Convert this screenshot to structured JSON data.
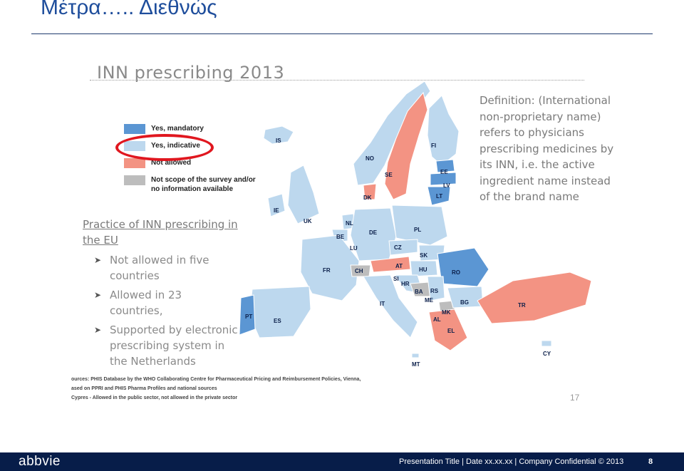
{
  "slide": {
    "title": "Μέτρα….. Διεθνώς"
  },
  "figure": {
    "title": "INN prescribing 2013",
    "legend": [
      {
        "label": "Yes, mandatory",
        "color": "#5b96d3"
      },
      {
        "label": "Yes, indicative",
        "color": "#bdd8ee"
      },
      {
        "label": "Not allowed",
        "color": "#f39383"
      },
      {
        "label": "Not scope of the survey and/or no information available",
        "color": "#bdbdbd"
      }
    ],
    "practice_heading": "Practice of INN prescribing in the EU",
    "bullets": [
      "Not allowed in five countries",
      "Allowed in 23 countries,",
      "Supported by electronic prescribing system in the Netherlands"
    ],
    "definition": "Definition: (International non-proprietary name) refers to physicians prescribing medicines by its INN, i.e. the active ingredient name instead of the brand name",
    "sources": [
      "ources: PHIS Database by the WHO Collaborating Centre for Pharmaceutical Pricing and Reimbursement Policies, Vienna,",
      "ased on PPRI and PHIS Pharma Profiles and national sources",
      "Cypres - Allowed in the public sector, not allowed in the private sector"
    ],
    "page_number": "17",
    "countries": [
      {
        "code": "IS",
        "status": "indicative"
      },
      {
        "code": "NO",
        "status": "indicative"
      },
      {
        "code": "SE",
        "status": "not_allowed"
      },
      {
        "code": "FI",
        "status": "indicative"
      },
      {
        "code": "EE",
        "status": "mandatory"
      },
      {
        "code": "LV",
        "status": "mandatory"
      },
      {
        "code": "LT",
        "status": "mandatory"
      },
      {
        "code": "DK",
        "status": "not_allowed"
      },
      {
        "code": "IE",
        "status": "indicative"
      },
      {
        "code": "UK",
        "status": "indicative"
      },
      {
        "code": "NL",
        "status": "indicative"
      },
      {
        "code": "BE",
        "status": "indicative"
      },
      {
        "code": "LU",
        "status": "indicative"
      },
      {
        "code": "DE",
        "status": "indicative"
      },
      {
        "code": "PL",
        "status": "indicative"
      },
      {
        "code": "CZ",
        "status": "indicative"
      },
      {
        "code": "SK",
        "status": "indicative"
      },
      {
        "code": "FR",
        "status": "indicative"
      },
      {
        "code": "CH",
        "status": "no_info"
      },
      {
        "code": "AT",
        "status": "not_allowed"
      },
      {
        "code": "HU",
        "status": "indicative"
      },
      {
        "code": "RO",
        "status": "mandatory"
      },
      {
        "code": "SI",
        "status": "indicative"
      },
      {
        "code": "HR",
        "status": "indicative"
      },
      {
        "code": "BA",
        "status": "no_info"
      },
      {
        "code": "RS",
        "status": "indicative"
      },
      {
        "code": "ME",
        "status": "indicative"
      },
      {
        "code": "MK",
        "status": "no_info"
      },
      {
        "code": "BG",
        "status": "indicative"
      },
      {
        "code": "AL",
        "status": "indicative"
      },
      {
        "code": "EL",
        "status": "not_allowed"
      },
      {
        "code": "TR",
        "status": "not_allowed"
      },
      {
        "code": "IT",
        "status": "indicative"
      },
      {
        "code": "ES",
        "status": "indicative"
      },
      {
        "code": "PT",
        "status": "mandatory"
      },
      {
        "code": "MT",
        "status": "indicative"
      },
      {
        "code": "CY",
        "status": "indicative"
      }
    ]
  },
  "footer": {
    "logo": "abbvie",
    "text": "Presentation Title | Date xx.xx.xx | Company Confidential © 2013",
    "page": "8"
  }
}
